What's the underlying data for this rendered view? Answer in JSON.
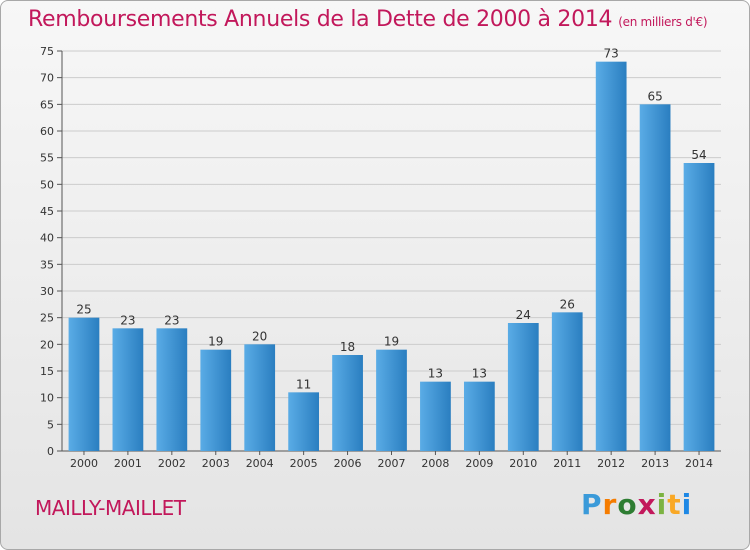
{
  "title": "Remboursements Annuels de la Dette de 2000 à 2014",
  "unit": "(en milliers d'€)",
  "commune": "MAILLY-MAILLET",
  "logo": {
    "text": "Proxiti",
    "colors": [
      "#3a9ad9",
      "#f57c00",
      "#2e7d32",
      "#c2185b",
      "#7cb342",
      "#f9a825",
      "#1e88e5"
    ]
  },
  "colors": {
    "title": "#c2185b",
    "bar_light": "#5aace6",
    "bar_dark": "#2a7ec0",
    "grid": "#cccccc"
  },
  "chart_data": {
    "type": "bar",
    "title": "Remboursements Annuels de la Dette de 2000 à 2014",
    "xlabel": "",
    "ylabel": "",
    "categories": [
      "2000",
      "2001",
      "2002",
      "2003",
      "2004",
      "2005",
      "2006",
      "2007",
      "2008",
      "2009",
      "2010",
      "2011",
      "2012",
      "2013",
      "2014"
    ],
    "values": [
      25,
      23,
      23,
      19,
      20,
      11,
      18,
      19,
      13,
      13,
      24,
      26,
      73,
      65,
      54
    ],
    "ylim": [
      0,
      75
    ],
    "yticks": [
      0,
      5,
      10,
      15,
      20,
      25,
      30,
      35,
      40,
      45,
      50,
      55,
      60,
      65,
      70,
      75
    ],
    "grid": true
  }
}
